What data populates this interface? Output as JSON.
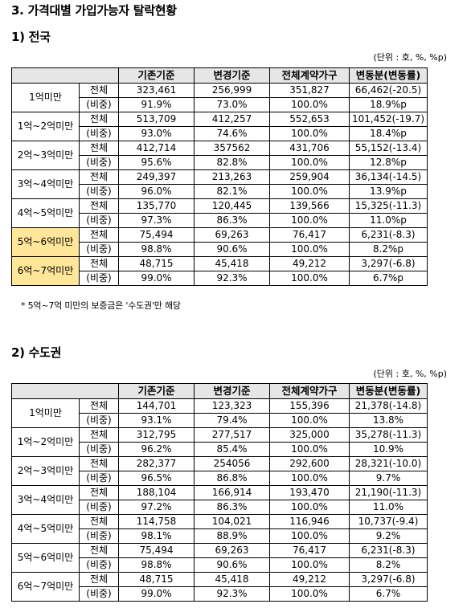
{
  "title": "3. 가격대별 가입가능자 탈락현황",
  "note": "* 5억~7억 미만의 보증금은 '수도권'만 해당",
  "sections": [
    {
      "heading": "1) 전국",
      "unit": "(단위 : 호, %, %p)",
      "columns": [
        "기존기준",
        "변경기준",
        "전체계약가구",
        "변동분(변동률)"
      ],
      "groups": [
        {
          "category": "1억미만",
          "highlight": false,
          "rows": [
            {
              "label": "전체",
              "cells": [
                "323,461",
                "256,999",
                "351,827",
                "66,462(-20.5)"
              ]
            },
            {
              "label": "(비중)",
              "cells": [
                "91.9%",
                "73.0%",
                "100.0%",
                "18.9%p"
              ]
            }
          ]
        },
        {
          "category": "1억~2억미만",
          "highlight": false,
          "rows": [
            {
              "label": "전체",
              "cells": [
                "513,709",
                "412,257",
                "552,653",
                "101,452(-19.7)"
              ]
            },
            {
              "label": "(비중)",
              "cells": [
                "93.0%",
                "74.6%",
                "100.0%",
                "18.4%p"
              ]
            }
          ]
        },
        {
          "category": "2억~3억미만",
          "highlight": false,
          "rows": [
            {
              "label": "전체",
              "cells": [
                "412,714",
                "357562",
                "431,706",
                "55,152(-13.4)"
              ]
            },
            {
              "label": "(비중)",
              "cells": [
                "95.6%",
                "82.8%",
                "100.0%",
                "12.8%p"
              ]
            }
          ]
        },
        {
          "category": "3억~4억미만",
          "highlight": false,
          "rows": [
            {
              "label": "전체",
              "cells": [
                "249,397",
                "213,263",
                "259,904",
                "36,134(-14.5)"
              ]
            },
            {
              "label": "(비중)",
              "cells": [
                "96.0%",
                "82.1%",
                "100.0%",
                "13.9%p"
              ]
            }
          ]
        },
        {
          "category": "4억~5억미만",
          "highlight": false,
          "rows": [
            {
              "label": "전체",
              "cells": [
                "135,770",
                "120,445",
                "139,566",
                "15,325(-11.3)"
              ]
            },
            {
              "label": "(비중)",
              "cells": [
                "97.3%",
                "86.3%",
                "100.0%",
                "11.0%p"
              ]
            }
          ]
        },
        {
          "category": "5억~6억미만",
          "highlight": true,
          "rows": [
            {
              "label": "전체",
              "cells": [
                "75,494",
                "69,263",
                "76,417",
                "6,231(-8.3)"
              ]
            },
            {
              "label": "(비중)",
              "cells": [
                "98.8%",
                "90.6%",
                "100.0%",
                "8.2%p"
              ]
            }
          ]
        },
        {
          "category": "6억~7억미만",
          "highlight": true,
          "rows": [
            {
              "label": "전체",
              "cells": [
                "48,715",
                "45,418",
                "49,212",
                "3,297(-6.8)"
              ]
            },
            {
              "label": "(비중)",
              "cells": [
                "99.0%",
                "92.3%",
                "100.0%",
                "6.7%p"
              ]
            }
          ]
        }
      ]
    },
    {
      "heading": "2) 수도권",
      "unit": "(단위 : 호, %, %p)",
      "columns": [
        "기존기준",
        "변경기준",
        "전체계약가구",
        "변동분(변동률)"
      ],
      "groups": [
        {
          "category": "1억미만",
          "highlight": false,
          "rows": [
            {
              "label": "전체",
              "cells": [
                "144,701",
                "123,323",
                "155,396",
                "21,378(-14.8)"
              ]
            },
            {
              "label": "(비중)",
              "cells": [
                "93.1%",
                "79.4%",
                "100.0%",
                "13.8%"
              ]
            }
          ]
        },
        {
          "category": "1억~2억미만",
          "highlight": false,
          "rows": [
            {
              "label": "전체",
              "cells": [
                "312,795",
                "277,517",
                "325,000",
                "35,278(-11.3)"
              ]
            },
            {
              "label": "(비중)",
              "cells": [
                "96.2%",
                "85.4%",
                "100.0%",
                "10.9%"
              ]
            }
          ]
        },
        {
          "category": "2억~3억미만",
          "highlight": false,
          "rows": [
            {
              "label": "전체",
              "cells": [
                "282,377",
                "254056",
                "292,600",
                "28,321(-10.0)"
              ]
            },
            {
              "label": "(비중)",
              "cells": [
                "96.5%",
                "86.8%",
                "100.0%",
                "9.7%"
              ]
            }
          ]
        },
        {
          "category": "3억~4억미만",
          "highlight": false,
          "rows": [
            {
              "label": "전체",
              "cells": [
                "188,104",
                "166,914",
                "193,470",
                "21,190(-11.3)"
              ]
            },
            {
              "label": "(비중)",
              "cells": [
                "97.2%",
                "86.3%",
                "100.0%",
                "11.0%"
              ]
            }
          ]
        },
        {
          "category": "4억~5억미만",
          "highlight": false,
          "rows": [
            {
              "label": "전체",
              "cells": [
                "114,758",
                "104,021",
                "116,946",
                "10,737(-9.4)"
              ]
            },
            {
              "label": "(비중)",
              "cells": [
                "98.1%",
                "88.9%",
                "100.0%",
                "9.2%"
              ]
            }
          ]
        },
        {
          "category": "5억~6억미만",
          "highlight": false,
          "rows": [
            {
              "label": "전체",
              "cells": [
                "75,494",
                "69,263",
                "76,417",
                "6,231(-8.3)"
              ]
            },
            {
              "label": "(비중)",
              "cells": [
                "98.8%",
                "90.6%",
                "100.0%",
                "8.2%"
              ]
            }
          ]
        },
        {
          "category": "6억~7억미만",
          "highlight": false,
          "rows": [
            {
              "label": "전체",
              "cells": [
                "48,715",
                "45,418",
                "49,212",
                "3,297(-6.8)"
              ]
            },
            {
              "label": "(비중)",
              "cells": [
                "99.0%",
                "92.3%",
                "100.0%",
                "6.7%"
              ]
            }
          ]
        }
      ]
    }
  ],
  "colors": {
    "header_bg": "#e6e6e6",
    "highlight_bg": "#ffe699"
  }
}
